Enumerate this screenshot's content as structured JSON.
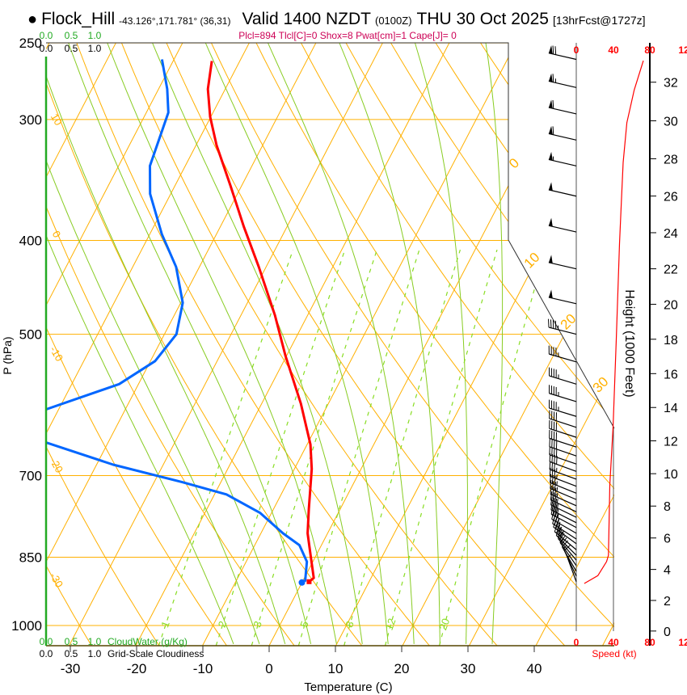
{
  "header": {
    "bullet": "●",
    "station": "Flock_Hill",
    "coords": "-43.126°,171.781° (36,31)",
    "valid": "Valid 1400 NZDT",
    "utc": "(0100Z)",
    "date": "THU 30 Oct 2025",
    "forecast": "[13hrFcst@1727z]",
    "indices": "Plcl=894 Tlcl[C]=0 Shox=8 Pwat[cm]=1 Cape[J]= 0"
  },
  "cloud_axis": {
    "ticks": [
      "0.0",
      "0.5",
      "1.0"
    ],
    "cloudwater_label": "CloudWater (g/Kg)",
    "cloudiness_label": "Grid-Scale Cloudiness"
  },
  "colors": {
    "temperature": "#ff0000",
    "dewpoint": "#0066ff",
    "isotherm": "#ffb000",
    "mixing_ratio": "#88dd22",
    "moist_adiabat": "#88cc22",
    "cloud": "#22aa22",
    "indices": "#cc0055",
    "speed": "#ff0000"
  },
  "chart_data": {
    "type": "skew-t",
    "xlabel": "Temperature (C)",
    "ylabel": "P (hPa)",
    "y2label": "Height (1000 Feet)",
    "speed_label": "Speed (kt)",
    "pressure_range": [
      1049,
      250
    ],
    "pressure_ticks": [
      "250",
      "300",
      "400",
      "500",
      "700",
      "850",
      "1000"
    ],
    "temperature_ticks": [
      "-30",
      "-20",
      "-10",
      "0",
      "10",
      "20",
      "30",
      "40"
    ],
    "isotherms": [
      -80,
      -70,
      -60,
      -50,
      -40,
      -30,
      -20,
      -10,
      0,
      10,
      20,
      30,
      40,
      50
    ],
    "isotherm_labels": [
      "0",
      "10",
      "20",
      "30"
    ],
    "dry_adiabats_theta_c": [
      -40,
      -30,
      -20,
      -10,
      0,
      10,
      20,
      30,
      40,
      50,
      60,
      70,
      80,
      90,
      100,
      110,
      120
    ],
    "dry_adiabat_labels": [
      "10",
      "0",
      "-10",
      "-20",
      "-30"
    ],
    "mixing_ratio_lines": [
      "1",
      "2",
      "3",
      "5",
      "8",
      "12",
      "20"
    ],
    "moist_adiabats_thetaw_c": [
      -8,
      -4,
      0,
      4,
      8,
      12,
      16,
      20,
      24,
      28,
      32
    ],
    "temperature_profile": [
      [
        901,
        1.0
      ],
      [
        893,
        1.4
      ],
      [
        851,
        -0.6
      ],
      [
        803,
        -3.0
      ],
      [
        758,
        -4.7
      ],
      [
        689,
        -7.4
      ],
      [
        650,
        -9.5
      ],
      [
        590,
        -14.1
      ],
      [
        526,
        -20.2
      ],
      [
        478,
        -24.9
      ],
      [
        426,
        -31.1
      ],
      [
        387,
        -36.5
      ],
      [
        351,
        -41.7
      ],
      [
        319,
        -46.9
      ],
      [
        298,
        -50.1
      ],
      [
        279,
        -52.6
      ],
      [
        261,
        -54.2
      ]
    ],
    "dewpoint_profile": [
      [
        901,
        0.4
      ],
      [
        859,
        -0.9
      ],
      [
        826,
        -3.3
      ],
      [
        803,
        -6.7
      ],
      [
        765,
        -11.7
      ],
      [
        732,
        -18.2
      ],
      [
        711,
        -25.8
      ],
      [
        682,
        -37.5
      ],
      [
        647,
        -49.3
      ],
      [
        620,
        -58.0
      ],
      [
        598,
        -51.9
      ],
      [
        563,
        -42.9
      ],
      [
        533,
        -39.3
      ],
      [
        500,
        -38.2
      ],
      [
        464,
        -39.7
      ],
      [
        426,
        -43.5
      ],
      [
        394,
        -48.2
      ],
      [
        358,
        -53.1
      ],
      [
        335,
        -55.3
      ],
      [
        295,
        -56.7
      ],
      [
        279,
        -58.7
      ],
      [
        260,
        -61.8
      ]
    ],
    "surface": {
      "pressure": 901,
      "temperature": 1.0,
      "dewpoint": 0.4
    },
    "height_ticks": [
      "0",
      "2",
      "4",
      "6",
      "8",
      "10",
      "12",
      "14",
      "16",
      "18",
      "20",
      "22",
      "24",
      "26",
      "28",
      "30",
      "32"
    ],
    "speed_ticks": [
      "0",
      "40",
      "80",
      "12"
    ],
    "wind_speed_profile": [
      [
        3.1,
        8.7
      ],
      [
        3.6,
        23.5
      ],
      [
        4.5,
        33
      ],
      [
        4.9,
        35
      ],
      [
        9.3,
        36.5
      ],
      [
        12.8,
        40
      ],
      [
        18,
        43.5
      ],
      [
        23.4,
        47
      ],
      [
        25.6,
        49
      ],
      [
        27.8,
        51
      ],
      [
        29.9,
        55
      ],
      [
        31.6,
        63
      ],
      [
        33.1,
        73
      ]
    ],
    "wind_barbs": [
      [
        260,
        283,
        70
      ],
      [
        278,
        283,
        65
      ],
      [
        296,
        283,
        60
      ],
      [
        315,
        283,
        60
      ],
      [
        335,
        283,
        55
      ],
      [
        360,
        283,
        50
      ],
      [
        392,
        283,
        50
      ],
      [
        428,
        283,
        50
      ],
      [
        465,
        283,
        50
      ],
      [
        500,
        284,
        45
      ],
      [
        534,
        286,
        45
      ],
      [
        563,
        287,
        45
      ],
      [
        587,
        287,
        45
      ],
      [
        608,
        287,
        45
      ],
      [
        624,
        288,
        40
      ],
      [
        639,
        288,
        40
      ],
      [
        654,
        288,
        40
      ],
      [
        668,
        289,
        40
      ],
      [
        681,
        289,
        40
      ],
      [
        693,
        290,
        40
      ],
      [
        706,
        290,
        35
      ],
      [
        718,
        291,
        35
      ],
      [
        730,
        292,
        35
      ],
      [
        741,
        293,
        35
      ],
      [
        752,
        294,
        35
      ],
      [
        763,
        295,
        35
      ],
      [
        773,
        296,
        35
      ],
      [
        783,
        297,
        35
      ],
      [
        792,
        298,
        35
      ],
      [
        803,
        300,
        35
      ],
      [
        814,
        303,
        35
      ],
      [
        823,
        306,
        35
      ],
      [
        835,
        310,
        35
      ],
      [
        846,
        315,
        30
      ],
      [
        856,
        320,
        25
      ],
      [
        867,
        325,
        20
      ],
      [
        879,
        330,
        15
      ],
      [
        889,
        335,
        10
      ],
      [
        901,
        340,
        5
      ]
    ]
  }
}
